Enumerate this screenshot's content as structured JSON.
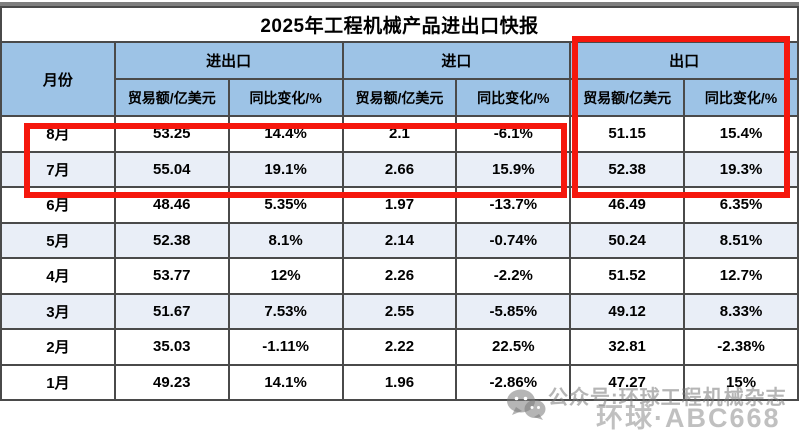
{
  "title": "2025年工程机械产品进出口快报",
  "table": {
    "month_header": "月份",
    "groups": [
      {
        "label": "进出口"
      },
      {
        "label": "进口"
      },
      {
        "label": "出口",
        "highlighted": true
      }
    ],
    "sub_headers": [
      "贸易额/亿美元",
      "同比变化/%"
    ],
    "rows": [
      {
        "month": "8月",
        "cells": [
          "53.25",
          "14.4%",
          "2.1",
          "-6.1%",
          "51.15",
          "15.4%"
        ],
        "shaded": false
      },
      {
        "month": "7月",
        "cells": [
          "55.04",
          "19.1%",
          "2.66",
          "15.9%",
          "52.38",
          "19.3%"
        ],
        "shaded": true
      },
      {
        "month": "6月",
        "cells": [
          "48.46",
          "5.35%",
          "1.97",
          "-13.7%",
          "46.49",
          "6.35%"
        ],
        "shaded": false
      },
      {
        "month": "5月",
        "cells": [
          "52.38",
          "8.1%",
          "2.14",
          "-0.74%",
          "50.24",
          "8.51%"
        ],
        "shaded": true
      },
      {
        "month": "4月",
        "cells": [
          "53.77",
          "12%",
          "2.26",
          "-2.2%",
          "51.52",
          "12.7%"
        ],
        "shaded": false
      },
      {
        "month": "3月",
        "cells": [
          "51.67",
          "7.53%",
          "2.55",
          "-5.85%",
          "49.12",
          "8.33%"
        ],
        "shaded": true
      },
      {
        "month": "2月",
        "cells": [
          "35.03",
          "-1.11%",
          "2.22",
          "22.5%",
          "32.81",
          "-2.38%"
        ],
        "shaded": false
      },
      {
        "month": "1月",
        "cells": [
          "49.23",
          "14.1%",
          "1.96",
          "-2.86%",
          "47.27",
          "15%"
        ],
        "shaded": false
      }
    ]
  },
  "annotations": {
    "highlighted_rows": [
      "8月",
      "7月"
    ],
    "highlighted_column_group": "出口",
    "highlight_color": "#F5170D"
  },
  "watermark": {
    "icon": "wechat-icon",
    "line1": "公众号:环球工程机械杂志",
    "line2": "环球·ABC668"
  },
  "colors": {
    "header_bg": "#9DC3E6",
    "row_tint": "#E9EEF7",
    "border_dark": "#4A4A4A",
    "border_top_gray": "#7F7F7F",
    "highlight_red": "#F5170D",
    "text": "#000000"
  },
  "chart_data": {
    "type": "table",
    "title": "2025年工程机械产品进出口快报",
    "columns": [
      "月份",
      "进出口 贸易额/亿美元",
      "进出口 同比变化/%",
      "进口 贸易额/亿美元",
      "进口 同比变化/%",
      "出口 贸易额/亿美元",
      "出口 同比变化/%"
    ],
    "months": [
      "8月",
      "7月",
      "6月",
      "5月",
      "4月",
      "3月",
      "2月",
      "1月"
    ],
    "series": [
      {
        "name": "进出口-贸易额/亿美元",
        "values": [
          53.25,
          55.04,
          48.46,
          52.38,
          53.77,
          51.67,
          35.03,
          49.23
        ]
      },
      {
        "name": "进出口-同比变化/%",
        "values": [
          14.4,
          19.1,
          5.35,
          8.1,
          12,
          7.53,
          -1.11,
          14.1
        ]
      },
      {
        "name": "进口-贸易额/亿美元",
        "values": [
          2.1,
          2.66,
          1.97,
          2.14,
          2.26,
          2.55,
          2.22,
          1.96
        ]
      },
      {
        "name": "进口-同比变化/%",
        "values": [
          -6.1,
          15.9,
          -13.7,
          -0.74,
          -2.2,
          -5.85,
          22.5,
          -2.86
        ]
      },
      {
        "name": "出口-贸易额/亿美元",
        "values": [
          51.15,
          52.38,
          46.49,
          50.24,
          51.52,
          49.12,
          32.81,
          47.27
        ]
      },
      {
        "name": "出口-同比变化/%",
        "values": [
          15.4,
          19.3,
          6.35,
          8.51,
          12.7,
          8.33,
          -2.38,
          15
        ]
      }
    ]
  }
}
